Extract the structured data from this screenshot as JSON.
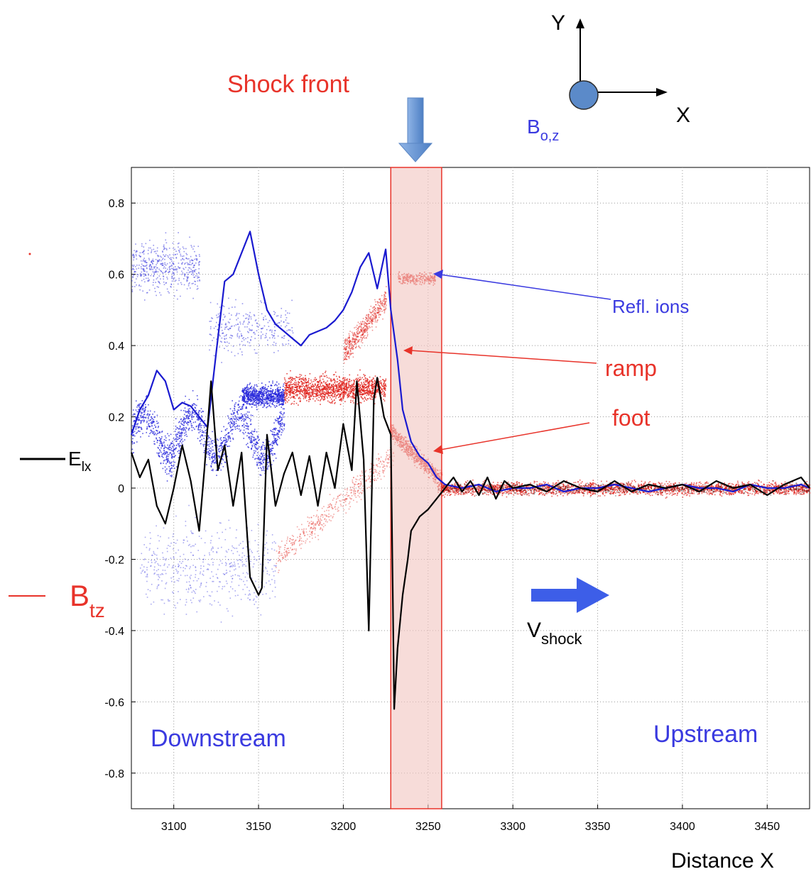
{
  "chart_data": {
    "type": "line",
    "title": "",
    "xlabel": "Distance X",
    "ylabel": "",
    "xlim": [
      3075,
      3475
    ],
    "ylim": [
      -0.9,
      0.9
    ],
    "grid": true,
    "x_ticks": [
      3100,
      3150,
      3200,
      3250,
      3300,
      3350,
      3400,
      3450
    ],
    "y_ticks": [
      -0.8,
      -0.6,
      -0.4,
      -0.2,
      0,
      0.2,
      0.4,
      0.6,
      0.8
    ],
    "x_tick_labels": [
      "3100",
      "3150",
      "3200",
      "3250",
      "3300",
      "3350",
      "3400",
      "3450"
    ],
    "y_tick_labels": [
      "-0.8",
      "-0.6",
      "-0.4",
      "-0.2",
      "0",
      "0.2",
      "0.4",
      "0.6",
      "0.8"
    ],
    "shock_region": {
      "x_start": 3228,
      "x_end": 3258,
      "color": "#f2c4c0",
      "border": "#e8332a"
    },
    "series": [
      {
        "name": "B",
        "subscript": "tz",
        "color": "#1a1ad0",
        "x": [
          3075,
          3080,
          3085,
          3090,
          3095,
          3100,
          3105,
          3110,
          3115,
          3120,
          3125,
          3130,
          3135,
          3140,
          3145,
          3150,
          3155,
          3160,
          3165,
          3170,
          3175,
          3180,
          3185,
          3190,
          3195,
          3200,
          3205,
          3210,
          3215,
          3220,
          3225,
          3228,
          3232,
          3235,
          3240,
          3245,
          3250,
          3255,
          3260,
          3270,
          3280,
          3290,
          3300,
          3310,
          3320,
          3330,
          3340,
          3350,
          3360,
          3370,
          3380,
          3390,
          3400,
          3410,
          3420,
          3430,
          3440,
          3450,
          3460,
          3470,
          3475
        ],
        "y": [
          0.15,
          0.22,
          0.26,
          0.33,
          0.3,
          0.22,
          0.24,
          0.23,
          0.2,
          0.17,
          0.38,
          0.58,
          0.6,
          0.66,
          0.72,
          0.6,
          0.5,
          0.46,
          0.44,
          0.42,
          0.4,
          0.43,
          0.44,
          0.45,
          0.47,
          0.5,
          0.55,
          0.62,
          0.66,
          0.56,
          0.67,
          0.5,
          0.36,
          0.22,
          0.13,
          0.09,
          0.07,
          0.03,
          0.01,
          0.0,
          0.01,
          -0.01,
          0.0,
          0.0,
          0.01,
          -0.01,
          0.0,
          0.0,
          0.01,
          0.0,
          -0.01,
          0.0,
          0.01,
          0.0,
          0.0,
          -0.01,
          0.01,
          0.0,
          0.0,
          0.01,
          0.0
        ]
      },
      {
        "name": "E",
        "subscript": "lx",
        "color": "#000000",
        "x": [
          3075,
          3080,
          3085,
          3090,
          3095,
          3100,
          3105,
          3110,
          3115,
          3118,
          3122,
          3126,
          3130,
          3135,
          3140,
          3145,
          3150,
          3152,
          3155,
          3160,
          3165,
          3170,
          3175,
          3180,
          3185,
          3190,
          3195,
          3200,
          3205,
          3208,
          3212,
          3215,
          3218,
          3220,
          3224,
          3228,
          3230,
          3232,
          3235,
          3238,
          3240,
          3245,
          3250,
          3255,
          3260,
          3265,
          3270,
          3275,
          3280,
          3285,
          3290,
          3295,
          3300,
          3310,
          3320,
          3330,
          3340,
          3350,
          3360,
          3370,
          3380,
          3390,
          3400,
          3410,
          3420,
          3430,
          3440,
          3450,
          3460,
          3470,
          3475
        ],
        "y": [
          0.1,
          0.03,
          0.08,
          -0.05,
          -0.1,
          0.0,
          0.12,
          0.02,
          -0.12,
          0.05,
          0.3,
          0.05,
          0.12,
          -0.05,
          0.1,
          -0.25,
          -0.3,
          -0.28,
          0.15,
          -0.05,
          0.04,
          0.1,
          -0.02,
          0.09,
          -0.05,
          0.1,
          0.0,
          0.18,
          0.05,
          0.3,
          0.08,
          -0.4,
          0.25,
          0.31,
          0.2,
          0.15,
          -0.62,
          -0.45,
          -0.3,
          -0.2,
          -0.12,
          -0.08,
          -0.06,
          -0.03,
          0.0,
          0.03,
          -0.01,
          0.02,
          -0.02,
          0.03,
          -0.03,
          0.02,
          0.0,
          0.01,
          -0.01,
          0.02,
          0.0,
          -0.01,
          0.02,
          -0.01,
          0.01,
          0.0,
          0.01,
          -0.01,
          0.02,
          0.0,
          0.01,
          -0.02,
          0.01,
          0.03,
          0.0
        ]
      }
    ],
    "annotations": {
      "shock_front": "Shock front",
      "refl_ions": "Refl. ions",
      "ramp": "ramp",
      "foot": "foot",
      "downstream": "Downstream",
      "upstream": "Upstream",
      "v_main": "V",
      "v_sub": "shock",
      "axis_x": "X",
      "axis_y": "Y",
      "b0_main": "B",
      "b0_sub": "o,z"
    },
    "colors": {
      "red_annotation": "#e8332a",
      "blue_annotation": "#3a3ae0",
      "arrow_fill": "#6c9ad8",
      "circle_fill": "#5b8ac9",
      "particles_blue": "#2a2adc",
      "particles_red": "#e0201a"
    }
  }
}
